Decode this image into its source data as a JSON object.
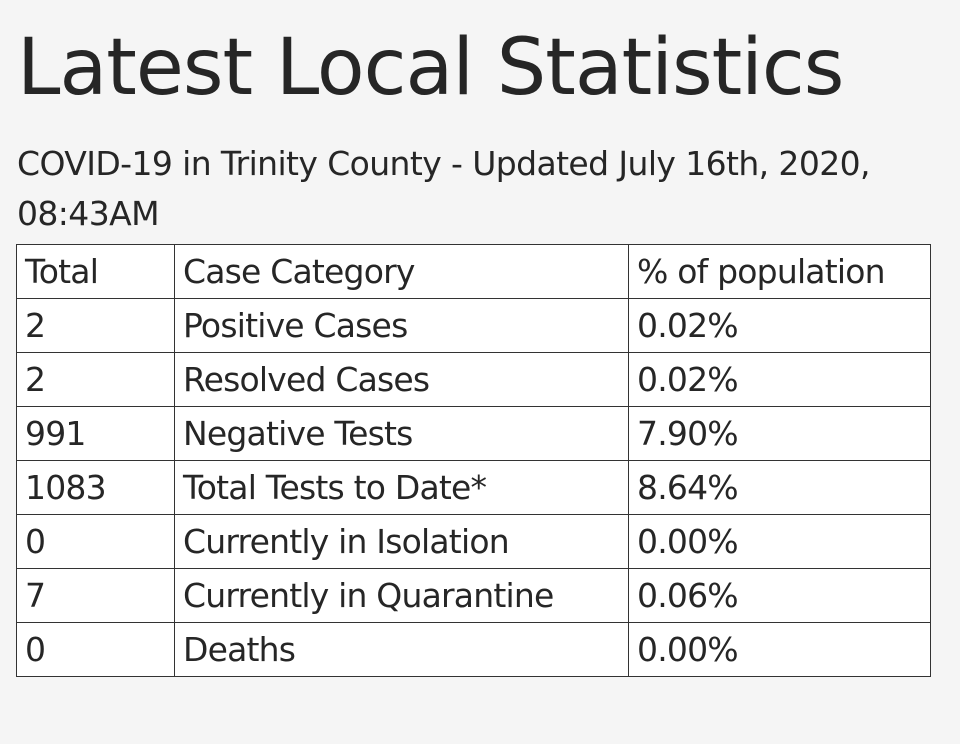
{
  "title": "Latest Local Statistics",
  "subtitle": "COVID-19 in Trinity County - Updated July 16th, 2020, 08:43AM",
  "table": {
    "headers": [
      "Total",
      "Case Category",
      "% of population"
    ],
    "rows": [
      {
        "total": "2",
        "category": "Positive Cases",
        "percent": "0.02%"
      },
      {
        "total": "2",
        "category": "Resolved Cases",
        "percent": "0.02%"
      },
      {
        "total": "991",
        "category": "Negative Tests",
        "percent": "7.90%"
      },
      {
        "total": "1083",
        "category": "Total Tests to Date*",
        "percent": "8.64%"
      },
      {
        "total": "0",
        "category": "Currently in Isolation",
        "percent": "0.00%"
      },
      {
        "total": "7",
        "category": "Currently in Quarantine",
        "percent": "0.06%"
      },
      {
        "total": "0",
        "category": "Deaths",
        "percent": "0.00%"
      }
    ]
  }
}
